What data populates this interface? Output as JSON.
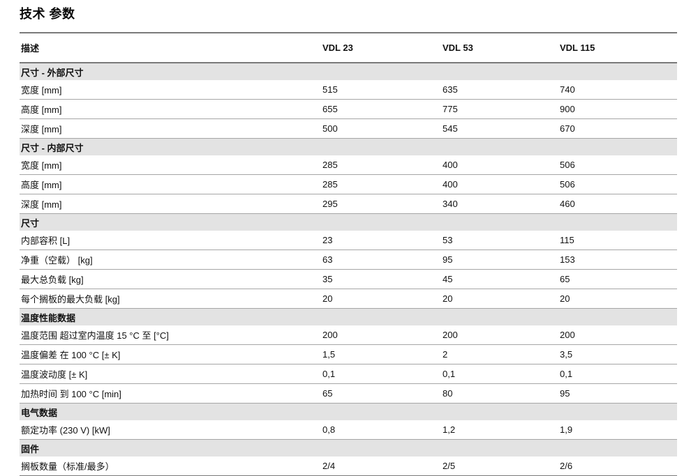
{
  "page": {
    "title": "技术 参数"
  },
  "table": {
    "description_header": "描述",
    "columns": [
      "VDL 23",
      "VDL 53",
      "VDL 115"
    ],
    "sections": [
      {
        "header": "尺寸 - 外部尺寸",
        "rows": [
          {
            "label": "宽度 [mm]",
            "values": [
              "515",
              "635",
              "740"
            ]
          },
          {
            "label": "高度 [mm]",
            "values": [
              "655",
              "775",
              "900"
            ]
          },
          {
            "label": "深度 [mm]",
            "values": [
              "500",
              "545",
              "670"
            ]
          }
        ]
      },
      {
        "header": "尺寸 - 内部尺寸",
        "rows": [
          {
            "label": "宽度 [mm]",
            "values": [
              "285",
              "400",
              "506"
            ]
          },
          {
            "label": "高度 [mm]",
            "values": [
              "285",
              "400",
              "506"
            ]
          },
          {
            "label": "深度 [mm]",
            "values": [
              "295",
              "340",
              "460"
            ]
          }
        ]
      },
      {
        "header": "尺寸",
        "rows": [
          {
            "label": "内部容积 [L]",
            "values": [
              "23",
              "53",
              "115"
            ]
          },
          {
            "label": "净重（空载） [kg]",
            "values": [
              "63",
              "95",
              "153"
            ]
          },
          {
            "label": "最大总负载 [kg]",
            "values": [
              "35",
              "45",
              "65"
            ]
          },
          {
            "label": "每个搁板的最大负载 [kg]",
            "values": [
              "20",
              "20",
              "20"
            ]
          }
        ]
      },
      {
        "header": "温度性能数据",
        "rows": [
          {
            "label": "温度范围 超过室内温度 15 °C 至 [°C]",
            "values": [
              "200",
              "200",
              "200"
            ]
          },
          {
            "label": "温度偏差 在 100 °C [± K]",
            "values": [
              "1,5",
              "2",
              "3,5"
            ]
          },
          {
            "label": "温度波动度 [± K]",
            "values": [
              "0,1",
              "0,1",
              "0,1"
            ]
          },
          {
            "label": "加热时间 到 100 °C [min]",
            "values": [
              "65",
              "80",
              "95"
            ]
          }
        ]
      },
      {
        "header": "电气数据",
        "rows": [
          {
            "label": "额定功率 (230 V) [kW]",
            "values": [
              "0,8",
              "1,2",
              "1,9"
            ]
          }
        ]
      },
      {
        "header": "固件",
        "rows": [
          {
            "label": "搁板数量（标准/最多）",
            "values": [
              "2/4",
              "2/5",
              "2/6"
            ]
          }
        ]
      }
    ]
  },
  "colors": {
    "section_band": "#e3e3e3",
    "heavy_rule": "#7a7a7a",
    "row_rule": "#a6a6a6",
    "text": "#111111"
  }
}
